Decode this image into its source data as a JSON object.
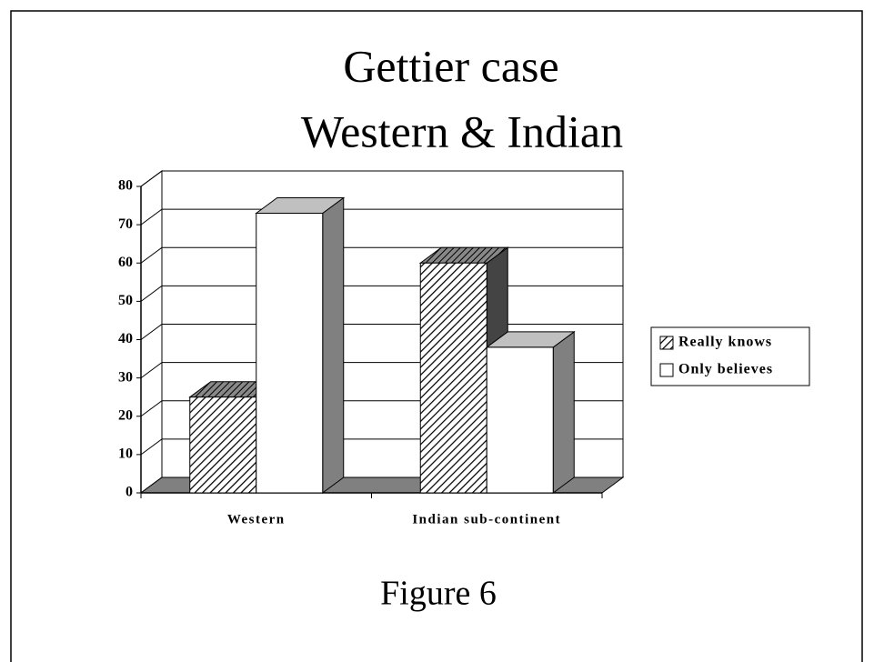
{
  "chart_data": {
    "type": "bar3d",
    "title": [
      "Gettier case",
      "Western & Indian"
    ],
    "caption": "Figure 6",
    "categories": [
      "Western",
      "Indian  sub-continent"
    ],
    "series": [
      {
        "name": "Really knows",
        "color": "#ffffff",
        "hatched": true,
        "values": [
          25,
          60
        ]
      },
      {
        "name": "Only believes",
        "color": "#ffffff",
        "hatched": false,
        "values": [
          73,
          38
        ]
      }
    ],
    "ylim": [
      0,
      80
    ],
    "yticks": [
      0,
      10,
      20,
      30,
      40,
      50,
      60,
      70,
      80
    ],
    "grid": true,
    "legend": "right"
  }
}
